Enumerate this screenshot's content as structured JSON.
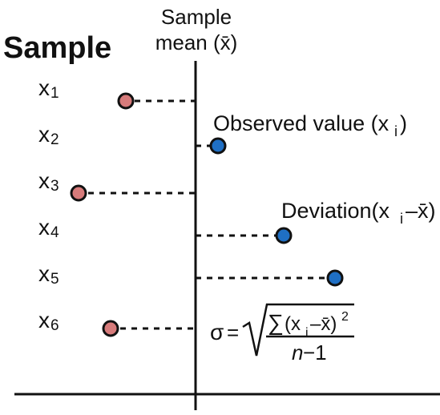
{
  "title": "Sample",
  "mean_axis_label": {
    "line1": "Sample",
    "line2": "mean (x̄)"
  },
  "colors": {
    "below_mean": "#d77b7b",
    "above_mean": "#1f6fc4",
    "stroke": "#111111"
  },
  "samples": [
    {
      "label_base": "x",
      "label_sub": "1",
      "side": "below"
    },
    {
      "label_base": "x",
      "label_sub": "2",
      "side": "above"
    },
    {
      "label_base": "x",
      "label_sub": "3",
      "side": "below"
    },
    {
      "label_base": "x",
      "label_sub": "4",
      "side": "above"
    },
    {
      "label_base": "x",
      "label_sub": "5",
      "side": "above"
    },
    {
      "label_base": "x",
      "label_sub": "6",
      "side": "below"
    }
  ],
  "annotations": {
    "observed": {
      "text": "Observed value (x",
      "sub": "i",
      "close": ")"
    },
    "deviation": {
      "text": "Deviation(x",
      "sub": "i",
      "tail": "–x̄)"
    }
  },
  "formula": {
    "sigma": "σ",
    "equals": "=",
    "sum": "∑",
    "numerator_pre": "(x",
    "numerator_sub": "i",
    "numerator_mid": "–x̄)",
    "numerator_sup": "2",
    "denominator_var": "n",
    "denominator_rest": "−1"
  }
}
